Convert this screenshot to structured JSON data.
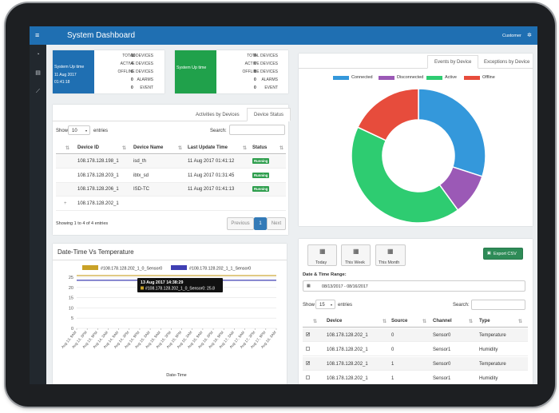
{
  "app": {
    "title": "System Dashboard",
    "user": "Customer"
  },
  "stat1": {
    "title": "System Up time",
    "date": "11 Aug 2017",
    "time": "01:41:18",
    "rows": [
      {
        "label": "TOTAL DEVICES",
        "value": "10"
      },
      {
        "label": "ACTIVE DEVICES",
        "value": "4"
      },
      {
        "label": "OFFLINE DEVICES",
        "value": "6"
      },
      {
        "label": "ALARMS",
        "value": "0"
      },
      {
        "label": "EVENT",
        "value": "0"
      }
    ]
  },
  "stat2": {
    "title": "System Up time",
    "rows": [
      {
        "label": "TOTAL DEVICES",
        "value": "0"
      },
      {
        "label": "ACTIVE DEVICES",
        "value": "0"
      },
      {
        "label": "OFFLINE DEVICES",
        "value": "0"
      },
      {
        "label": "ALARMS",
        "value": "0"
      },
      {
        "label": "EVENT",
        "value": "0"
      }
    ]
  },
  "devices": {
    "tabs": [
      "Activities by Devices",
      "Device Status"
    ],
    "show_label": "Show",
    "show_value": "10",
    "entries_label": "entries",
    "search_label": "Search:",
    "columns": [
      "Device ID",
      "Device Name",
      "Last Update Time",
      "Status"
    ],
    "rows": [
      {
        "id": "108.178.128.198_1",
        "name": "isd_th",
        "time": "11 Aug 2017 01:41:12",
        "status": "Running"
      },
      {
        "id": "108.178.128.203_1",
        "name": "ibtx_sd",
        "time": "11 Aug 2017 01:31:45",
        "status": "Running"
      },
      {
        "id": "108.178.128.206_1",
        "name": "ISD-TC",
        "time": "11 Aug 2017 01:41:13",
        "status": "Running"
      },
      {
        "id": "108.178.128.202_1",
        "name": "",
        "time": "",
        "status": ""
      }
    ],
    "expand_icon": "+",
    "info": "Showing 1 to 4 of 4 entries",
    "pager": {
      "prev": "Previous",
      "page": "1",
      "next": "Next"
    }
  },
  "donut": {
    "tabs": [
      "Events by Device",
      "Exceptions by Device"
    ],
    "legend": [
      "Connected",
      "Disconnected",
      "Active",
      "Offline"
    ],
    "colors": [
      "#3498db",
      "#9b59b6",
      "#2ecc71",
      "#e74c3c"
    ]
  },
  "chart_data": [
    {
      "type": "pie",
      "labels": [
        "Connected",
        "Disconnected",
        "Active",
        "Offline"
      ],
      "values": [
        30,
        10,
        42,
        18
      ],
      "colors": [
        "#3498db",
        "#9b59b6",
        "#2ecc71",
        "#e74c3c"
      ],
      "legend": "top"
    },
    {
      "type": "line",
      "title": "Date-Time Vs Temperature",
      "xlabel": "Date-Time",
      "ylabel": "",
      "ylim": [
        0,
        25
      ],
      "yticks": [
        0,
        5,
        10,
        15,
        20,
        25
      ],
      "categories": [
        "Aug 13, 9AM",
        "Aug 13, 3PM",
        "Aug 13, 9PM",
        "Aug 14, 3AM",
        "Aug 14, 9AM",
        "Aug 14, 3PM",
        "Aug 14, 9PM",
        "Aug 15, 3AM",
        "Aug 15, 9AM",
        "Aug 15, 3PM",
        "Aug 15, 9PM",
        "Aug 16, 3AM",
        "Aug 16, 9AM",
        "Aug 16, 3PM",
        "Aug 16, 9PM",
        "Aug 17, 3AM",
        "Aug 17, 9AM",
        "Aug 17, 3PM",
        "Aug 17, 9PM",
        "Aug 18, 3AM"
      ],
      "series": [
        {
          "name": "#108.178.128.202_1_0_Sensor0",
          "color": "#c9a227",
          "values": [
            25.8,
            25.8,
            25.8,
            25.8,
            25.8,
            25.8,
            25.8,
            25.8,
            25.8,
            25.8,
            25.8,
            25.8,
            25.8,
            25.8,
            25.8,
            25.8,
            25.8,
            25.8,
            25.8,
            25.8
          ]
        },
        {
          "name": "#108.178.128.202_1_1_Sensor0",
          "color": "#3f3fb3",
          "values": [
            23.5,
            23.5,
            23.5,
            23.5,
            23.5,
            23.5,
            23.5,
            23.5,
            23.5,
            23.5,
            23.5,
            23.5,
            23.5,
            23.5,
            23.5,
            23.5,
            23.5,
            23.5,
            23.5,
            23.5
          ]
        }
      ],
      "tooltip": {
        "title": "13 Aug 2017 14:38:29",
        "text": "#108.178.128.202_1_0_Sensor0: 25.8"
      },
      "legend": "top"
    }
  ],
  "sensors": {
    "quick": [
      "Today",
      "This Week",
      "This Month"
    ],
    "export": "Export CSV",
    "range_label": "Date & Time Range:",
    "range_value": "08/13/2017 - 08/16/2017",
    "show_label": "Show",
    "show_value": "15",
    "entries_label": "entries",
    "search_label": "Search:",
    "columns": [
      "Device",
      "Source",
      "Channel",
      "Type"
    ],
    "rows": [
      {
        "checked": true,
        "device": "108.178.128.202_1",
        "source": "0",
        "channel": "Sensor0",
        "type": "Temperature"
      },
      {
        "checked": false,
        "device": "108.178.128.202_1",
        "source": "0",
        "channel": "Sensor1",
        "type": "Humidity"
      },
      {
        "checked": true,
        "device": "108.178.128.202_1",
        "source": "1",
        "channel": "Sensor0",
        "type": "Temperature"
      },
      {
        "checked": false,
        "device": "108.178.128.202_1",
        "source": "1",
        "channel": "Sensor1",
        "type": "Humidity"
      }
    ]
  }
}
